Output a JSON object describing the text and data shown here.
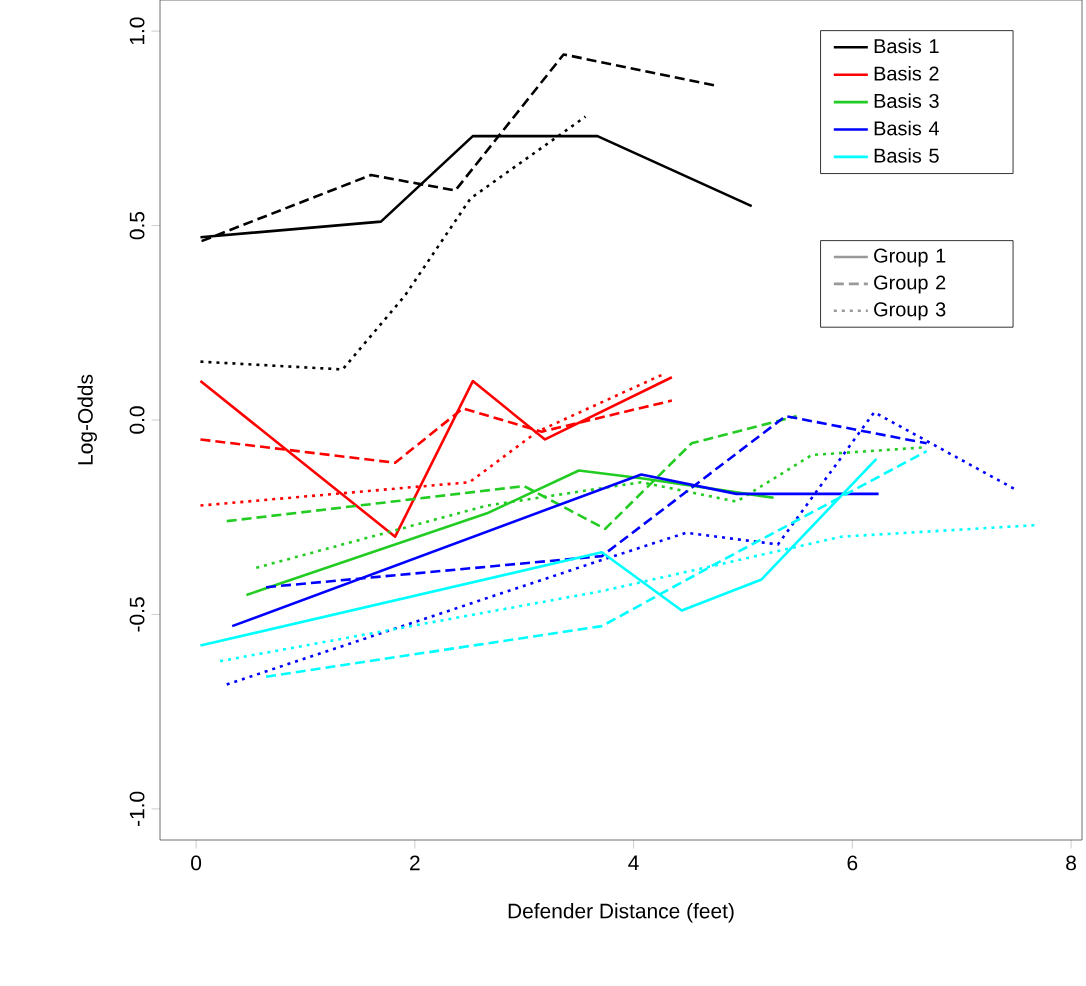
{
  "chart_data": {
    "type": "line",
    "xlabel": "Defender Distance (feet)",
    "ylabel": "Log-Odds",
    "xlim": [
      -0.33,
      8.1
    ],
    "ylim": [
      -1.08,
      1.08
    ],
    "xticks": [
      0,
      2,
      4,
      6,
      8
    ],
    "yticks": [
      {
        "value": -1,
        "label": "-1.0"
      },
      {
        "value": -0.5,
        "label": "-0.5"
      },
      {
        "value": 0,
        "label": "0.0"
      },
      {
        "value": 0.5,
        "label": "0.5"
      },
      {
        "value": 1,
        "label": "1.0"
      }
    ],
    "legend": "top right",
    "grid": false,
    "marker": "none",
    "series": [
      {
        "color": "#000000",
        "line_style": "solid",
        "x": [
          0.04,
          1.69,
          2.53,
          3.67,
          5.08
        ],
        "values": [
          0.47,
          0.51,
          0.73,
          0.73,
          0.55
        ]
      },
      {
        "color": "#000000",
        "line_style": "dashed",
        "x": [
          0.05,
          1.6,
          2.37,
          3.36,
          4.75
        ],
        "values": [
          0.46,
          0.63,
          0.59,
          0.94,
          0.86
        ]
      },
      {
        "color": "#000000",
        "line_style": "dotted",
        "x": [
          0.04,
          1.34,
          1.91,
          2.51,
          3.56
        ],
        "values": [
          0.15,
          0.13,
          0.32,
          0.57,
          0.78
        ]
      },
      {
        "color": "#ff0000",
        "line_style": "solid",
        "x": [
          0.04,
          1.82,
          2.53,
          3.19,
          4.35
        ],
        "values": [
          0.1,
          -0.3,
          0.1,
          -0.05,
          0.11
        ]
      },
      {
        "color": "#ff0000",
        "line_style": "dashed",
        "x": [
          0.04,
          1.82,
          2.44,
          3.16,
          4.35
        ],
        "values": [
          -0.05,
          -0.11,
          0.03,
          -0.03,
          0.05
        ]
      },
      {
        "color": "#ff0000",
        "line_style": "dotted",
        "x": [
          0.04,
          2.5,
          3.12,
          4.29
        ],
        "values": [
          -0.22,
          -0.16,
          -0.03,
          0.12
        ]
      },
      {
        "color": "#22cc22",
        "line_style": "solid",
        "x": [
          0.46,
          2.66,
          3.5,
          4.07,
          5.28
        ],
        "values": [
          -0.45,
          -0.24,
          -0.13,
          -0.15,
          -0.2
        ]
      },
      {
        "color": "#22cc22",
        "line_style": "dashed",
        "x": [
          0.28,
          3.0,
          3.74,
          4.53,
          5.49
        ],
        "values": [
          -0.26,
          -0.17,
          -0.28,
          -0.06,
          0.01
        ]
      },
      {
        "color": "#22cc22",
        "line_style": "dotted",
        "x": [
          0.55,
          2.66,
          4.07,
          4.94,
          5.63,
          6.68
        ],
        "values": [
          -0.38,
          -0.22,
          -0.16,
          -0.21,
          -0.09,
          -0.07
        ]
      },
      {
        "color": "#0000ff",
        "line_style": "solid",
        "x": [
          0.33,
          4.07,
          4.94,
          6.24
        ],
        "values": [
          -0.53,
          -0.14,
          -0.19,
          -0.19
        ]
      },
      {
        "color": "#0000ff",
        "line_style": "dashed",
        "x": [
          0.64,
          3.71,
          5.39,
          6.68
        ],
        "values": [
          -0.43,
          -0.35,
          0.01,
          -0.06
        ]
      },
      {
        "color": "#0000ff",
        "line_style": "dotted",
        "x": [
          0.28,
          3.71,
          4.48,
          5.32,
          6.2,
          7.5
        ],
        "values": [
          -0.68,
          -0.36,
          -0.29,
          -0.32,
          0.02,
          -0.18
        ]
      },
      {
        "color": "#00ffff",
        "line_style": "solid",
        "x": [
          0.04,
          3.71,
          4.44,
          5.17,
          6.22
        ],
        "values": [
          -0.58,
          -0.34,
          -0.49,
          -0.41,
          -0.1
        ]
      },
      {
        "color": "#00ffff",
        "line_style": "dashed",
        "x": [
          0.64,
          3.71,
          4.75,
          6.68
        ],
        "values": [
          -0.66,
          -0.53,
          -0.37,
          -0.08
        ]
      },
      {
        "color": "#00ffff",
        "line_style": "dotted",
        "x": [
          0.22,
          3.71,
          5.9,
          7.7
        ],
        "values": [
          -0.62,
          -0.44,
          -0.3,
          -0.27
        ]
      },
      {
        "name": "Basis 1",
        "color": "#000000",
        "line_style": "solid"
      },
      {
        "name": "Basis 2",
        "color": "#ff0000",
        "line_style": "solid"
      },
      {
        "name": "Basis 3",
        "color": "#22cc22",
        "line_style": "solid"
      },
      {
        "name": "Basis 4",
        "color": "#0000ff",
        "line_style": "solid"
      },
      {
        "name": "Basis 5",
        "color": "#00ffff",
        "line_style": "solid"
      },
      {
        "name": "Group 1",
        "color": "#999999",
        "line_style": "solid"
      },
      {
        "name": "Group 2",
        "color": "#999999",
        "line_style": "dashed"
      },
      {
        "name": "Group 3",
        "color": "#999999",
        "line_style": "dotted"
      }
    ]
  }
}
